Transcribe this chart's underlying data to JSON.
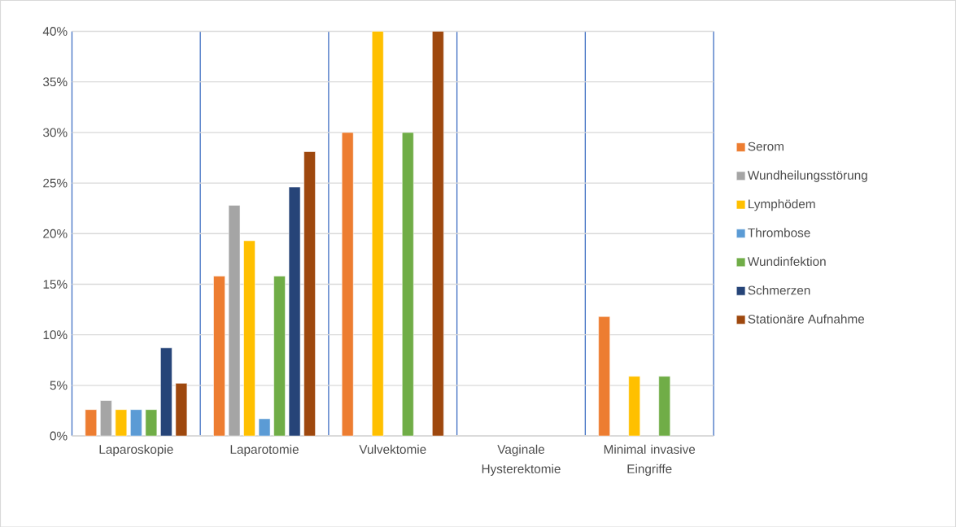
{
  "chart_data": {
    "type": "bar",
    "categories": [
      "Laparoskopie",
      "Laparotomie",
      "Vulvektomie",
      "Vaginale Hysterektomie",
      "Minimal invasive Eingriffe"
    ],
    "series": [
      {
        "name": "Serom",
        "color": "#ed7d31",
        "values": [
          2.6,
          15.8,
          30,
          null,
          11.8
        ]
      },
      {
        "name": "Wundheilungsstörung",
        "color": "#a5a5a5",
        "values": [
          3.5,
          22.8,
          null,
          null,
          null
        ]
      },
      {
        "name": "Lymphödem",
        "color": "#ffc000",
        "values": [
          2.6,
          19.3,
          40,
          null,
          5.9
        ]
      },
      {
        "name": "Thrombose",
        "color": "#5b9bd5",
        "values": [
          2.6,
          1.7,
          null,
          null,
          null
        ]
      },
      {
        "name": "Wundinfektion",
        "color": "#70ad47",
        "values": [
          2.6,
          15.8,
          30,
          null,
          5.9
        ]
      },
      {
        "name": "Schmerzen",
        "color": "#264478",
        "values": [
          8.7,
          24.6,
          null,
          null,
          null
        ]
      },
      {
        "name": "Stationäre Aufnahme",
        "color": "#9e480e",
        "values": [
          5.2,
          28.1,
          40,
          null,
          null
        ]
      }
    ],
    "ylim": [
      0,
      40
    ],
    "yticks": [
      {
        "value": 0,
        "label": "0%"
      },
      {
        "value": 5,
        "label": "5%"
      },
      {
        "value": 10,
        "label": "10%"
      },
      {
        "value": 15,
        "label": "15%"
      },
      {
        "value": 20,
        "label": "20%"
      },
      {
        "value": 25,
        "label": "25%"
      },
      {
        "value": 30,
        "label": "30%"
      },
      {
        "value": 35,
        "label": "35%"
      },
      {
        "value": 40,
        "label": "40%"
      }
    ],
    "grid": true,
    "legend": "right"
  }
}
